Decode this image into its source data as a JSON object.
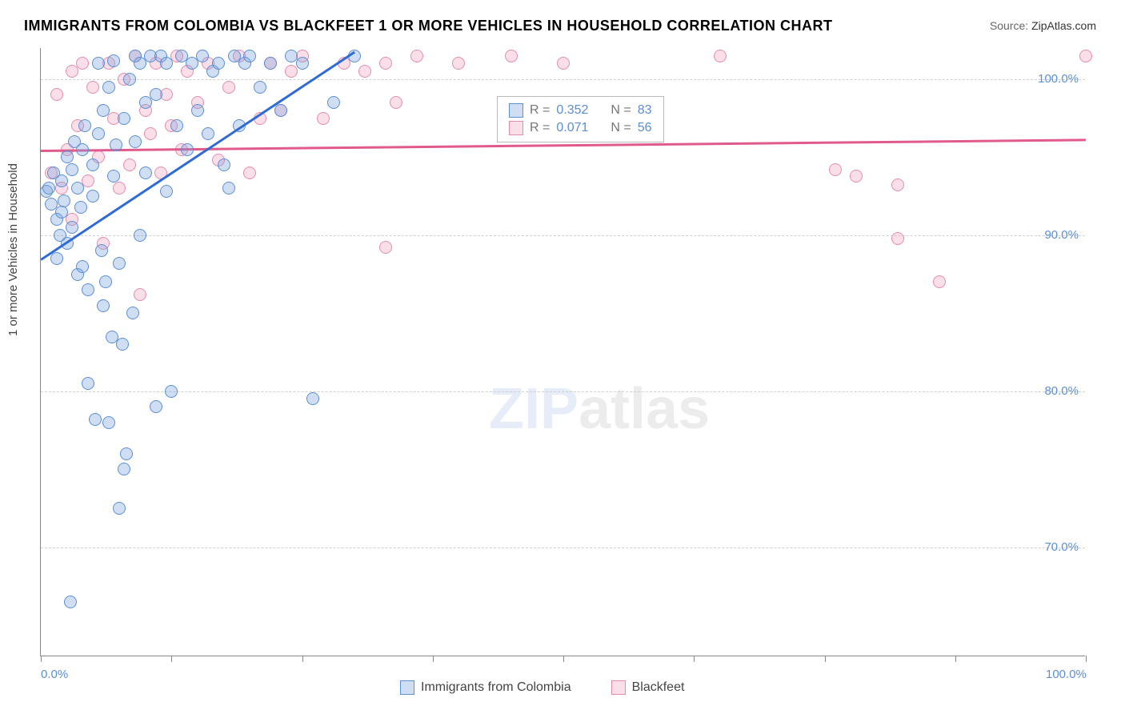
{
  "title": "IMMIGRANTS FROM COLOMBIA VS BLACKFEET 1 OR MORE VEHICLES IN HOUSEHOLD CORRELATION CHART",
  "source_label": "Source:",
  "source_name": "ZipAtlas.com",
  "ylabel": "1 or more Vehicles in Household",
  "chart": {
    "type": "scatter",
    "xlim": [
      0,
      100
    ],
    "ylim": [
      63,
      102
    ],
    "xtick_positions": [
      0,
      12.5,
      25,
      37.5,
      50,
      62.5,
      75,
      87.5,
      100
    ],
    "xtick_labels": {
      "0": "0.0%",
      "100": "100.0%"
    },
    "ytick_values": [
      70,
      80,
      90,
      100
    ],
    "ytick_labels": [
      "70.0%",
      "80.0%",
      "90.0%",
      "100.0%"
    ],
    "grid_color": "#d0d0d0",
    "background_color": "#ffffff",
    "axis_color": "#888888",
    "tick_label_color": "#5b8fd6",
    "marker_size": 16,
    "marker_opacity": 0.35
  },
  "series": {
    "blue": {
      "label": "Immigrants from Colombia",
      "fill_color": "#7aa0dc",
      "stroke_color": "#5b8fd6",
      "R": 0.352,
      "N": 83,
      "trend": {
        "x1": 0,
        "y1": 88.5,
        "x2": 30,
        "y2": 101.8,
        "color": "#2e6bd6",
        "width": 2.5
      },
      "points": [
        [
          0.5,
          92.8
        ],
        [
          0.8,
          93.0
        ],
        [
          1.0,
          92.0
        ],
        [
          1.2,
          94.0
        ],
        [
          1.5,
          91.0
        ],
        [
          1.5,
          88.5
        ],
        [
          1.8,
          90.0
        ],
        [
          2.0,
          93.5
        ],
        [
          2.0,
          91.5
        ],
        [
          2.2,
          92.2
        ],
        [
          2.5,
          95.0
        ],
        [
          2.5,
          89.5
        ],
        [
          2.8,
          66.5
        ],
        [
          3.0,
          90.5
        ],
        [
          3.0,
          94.2
        ],
        [
          3.2,
          96.0
        ],
        [
          3.5,
          93.0
        ],
        [
          3.5,
          87.5
        ],
        [
          3.8,
          91.8
        ],
        [
          4.0,
          95.5
        ],
        [
          4.0,
          88.0
        ],
        [
          4.2,
          97.0
        ],
        [
          4.5,
          86.5
        ],
        [
          4.5,
          80.5
        ],
        [
          5.0,
          94.5
        ],
        [
          5.0,
          92.5
        ],
        [
          5.2,
          78.2
        ],
        [
          5.5,
          101.0
        ],
        [
          5.5,
          96.5
        ],
        [
          5.8,
          89.0
        ],
        [
          6.0,
          98.0
        ],
        [
          6.0,
          85.5
        ],
        [
          6.2,
          87.0
        ],
        [
          6.5,
          99.5
        ],
        [
          6.5,
          78.0
        ],
        [
          6.8,
          83.5
        ],
        [
          7.0,
          101.2
        ],
        [
          7.0,
          93.8
        ],
        [
          7.2,
          95.8
        ],
        [
          7.5,
          72.5
        ],
        [
          7.5,
          88.2
        ],
        [
          7.8,
          83.0
        ],
        [
          8.0,
          97.5
        ],
        [
          8.0,
          75.0
        ],
        [
          8.2,
          76.0
        ],
        [
          8.5,
          100.0
        ],
        [
          8.8,
          85.0
        ],
        [
          9.0,
          101.5
        ],
        [
          9.0,
          96.0
        ],
        [
          9.5,
          90.0
        ],
        [
          9.5,
          101.0
        ],
        [
          10.0,
          98.5
        ],
        [
          10.0,
          94.0
        ],
        [
          10.5,
          101.5
        ],
        [
          11.0,
          99.0
        ],
        [
          11.0,
          79.0
        ],
        [
          11.5,
          101.5
        ],
        [
          12.0,
          92.8
        ],
        [
          12.0,
          101.0
        ],
        [
          12.5,
          80.0
        ],
        [
          13.0,
          97.0
        ],
        [
          13.5,
          101.5
        ],
        [
          14.0,
          95.5
        ],
        [
          14.5,
          101.0
        ],
        [
          15.0,
          98.0
        ],
        [
          15.5,
          101.5
        ],
        [
          16.0,
          96.5
        ],
        [
          16.5,
          100.5
        ],
        [
          17.0,
          101.0
        ],
        [
          17.5,
          94.5
        ],
        [
          18.0,
          93.0
        ],
        [
          18.5,
          101.5
        ],
        [
          19.0,
          97.0
        ],
        [
          19.5,
          101.0
        ],
        [
          20.0,
          101.5
        ],
        [
          21.0,
          99.5
        ],
        [
          22.0,
          101.0
        ],
        [
          23.0,
          98.0
        ],
        [
          24.0,
          101.5
        ],
        [
          25.0,
          101.0
        ],
        [
          26.0,
          79.5
        ],
        [
          28.0,
          98.5
        ],
        [
          30.0,
          101.5
        ]
      ]
    },
    "pink": {
      "label": "Blackfeet",
      "fill_color": "#f0a0be",
      "stroke_color": "#e48db0",
      "R": 0.071,
      "N": 56,
      "trend": {
        "x1": 0,
        "y1": 95.5,
        "x2": 100,
        "y2": 96.2,
        "color": "#e05a8c",
        "width": 2.5
      },
      "points": [
        [
          1.0,
          94.0
        ],
        [
          1.5,
          99.0
        ],
        [
          2.0,
          93.0
        ],
        [
          2.5,
          95.5
        ],
        [
          3.0,
          100.5
        ],
        [
          3.0,
          91.0
        ],
        [
          3.5,
          97.0
        ],
        [
          4.0,
          101.0
        ],
        [
          4.5,
          93.5
        ],
        [
          5.0,
          99.5
        ],
        [
          5.5,
          95.0
        ],
        [
          6.0,
          89.5
        ],
        [
          6.5,
          101.0
        ],
        [
          7.0,
          97.5
        ],
        [
          7.5,
          93.0
        ],
        [
          8.0,
          100.0
        ],
        [
          8.5,
          94.5
        ],
        [
          9.0,
          101.5
        ],
        [
          9.5,
          86.2
        ],
        [
          10.0,
          98.0
        ],
        [
          10.5,
          96.5
        ],
        [
          11.0,
          101.0
        ],
        [
          11.5,
          94.0
        ],
        [
          12.0,
          99.0
        ],
        [
          12.5,
          97.0
        ],
        [
          13.0,
          101.5
        ],
        [
          13.5,
          95.5
        ],
        [
          14.0,
          100.5
        ],
        [
          15.0,
          98.5
        ],
        [
          16.0,
          101.0
        ],
        [
          17.0,
          94.8
        ],
        [
          18.0,
          99.5
        ],
        [
          19.0,
          101.5
        ],
        [
          20.0,
          94.0
        ],
        [
          21.0,
          97.5
        ],
        [
          22.0,
          101.0
        ],
        [
          23.0,
          98.0
        ],
        [
          24.0,
          100.5
        ],
        [
          25.0,
          101.5
        ],
        [
          27.0,
          97.5
        ],
        [
          29.0,
          101.0
        ],
        [
          31.0,
          100.5
        ],
        [
          33.0,
          89.2
        ],
        [
          33.0,
          101.0
        ],
        [
          34.0,
          98.5
        ],
        [
          36.0,
          101.5
        ],
        [
          40.0,
          101.0
        ],
        [
          45.0,
          101.5
        ],
        [
          50.0,
          101.0
        ],
        [
          65.0,
          101.5
        ],
        [
          76.0,
          94.2
        ],
        [
          78.0,
          93.8
        ],
        [
          82.0,
          93.2
        ],
        [
          82.0,
          89.8
        ],
        [
          86.0,
          87.0
        ],
        [
          100.0,
          101.5
        ]
      ]
    }
  },
  "legend_top": {
    "r_label": "R =",
    "n_label": "N ="
  },
  "watermark": {
    "part1": "ZIP",
    "part2": "atlas"
  }
}
